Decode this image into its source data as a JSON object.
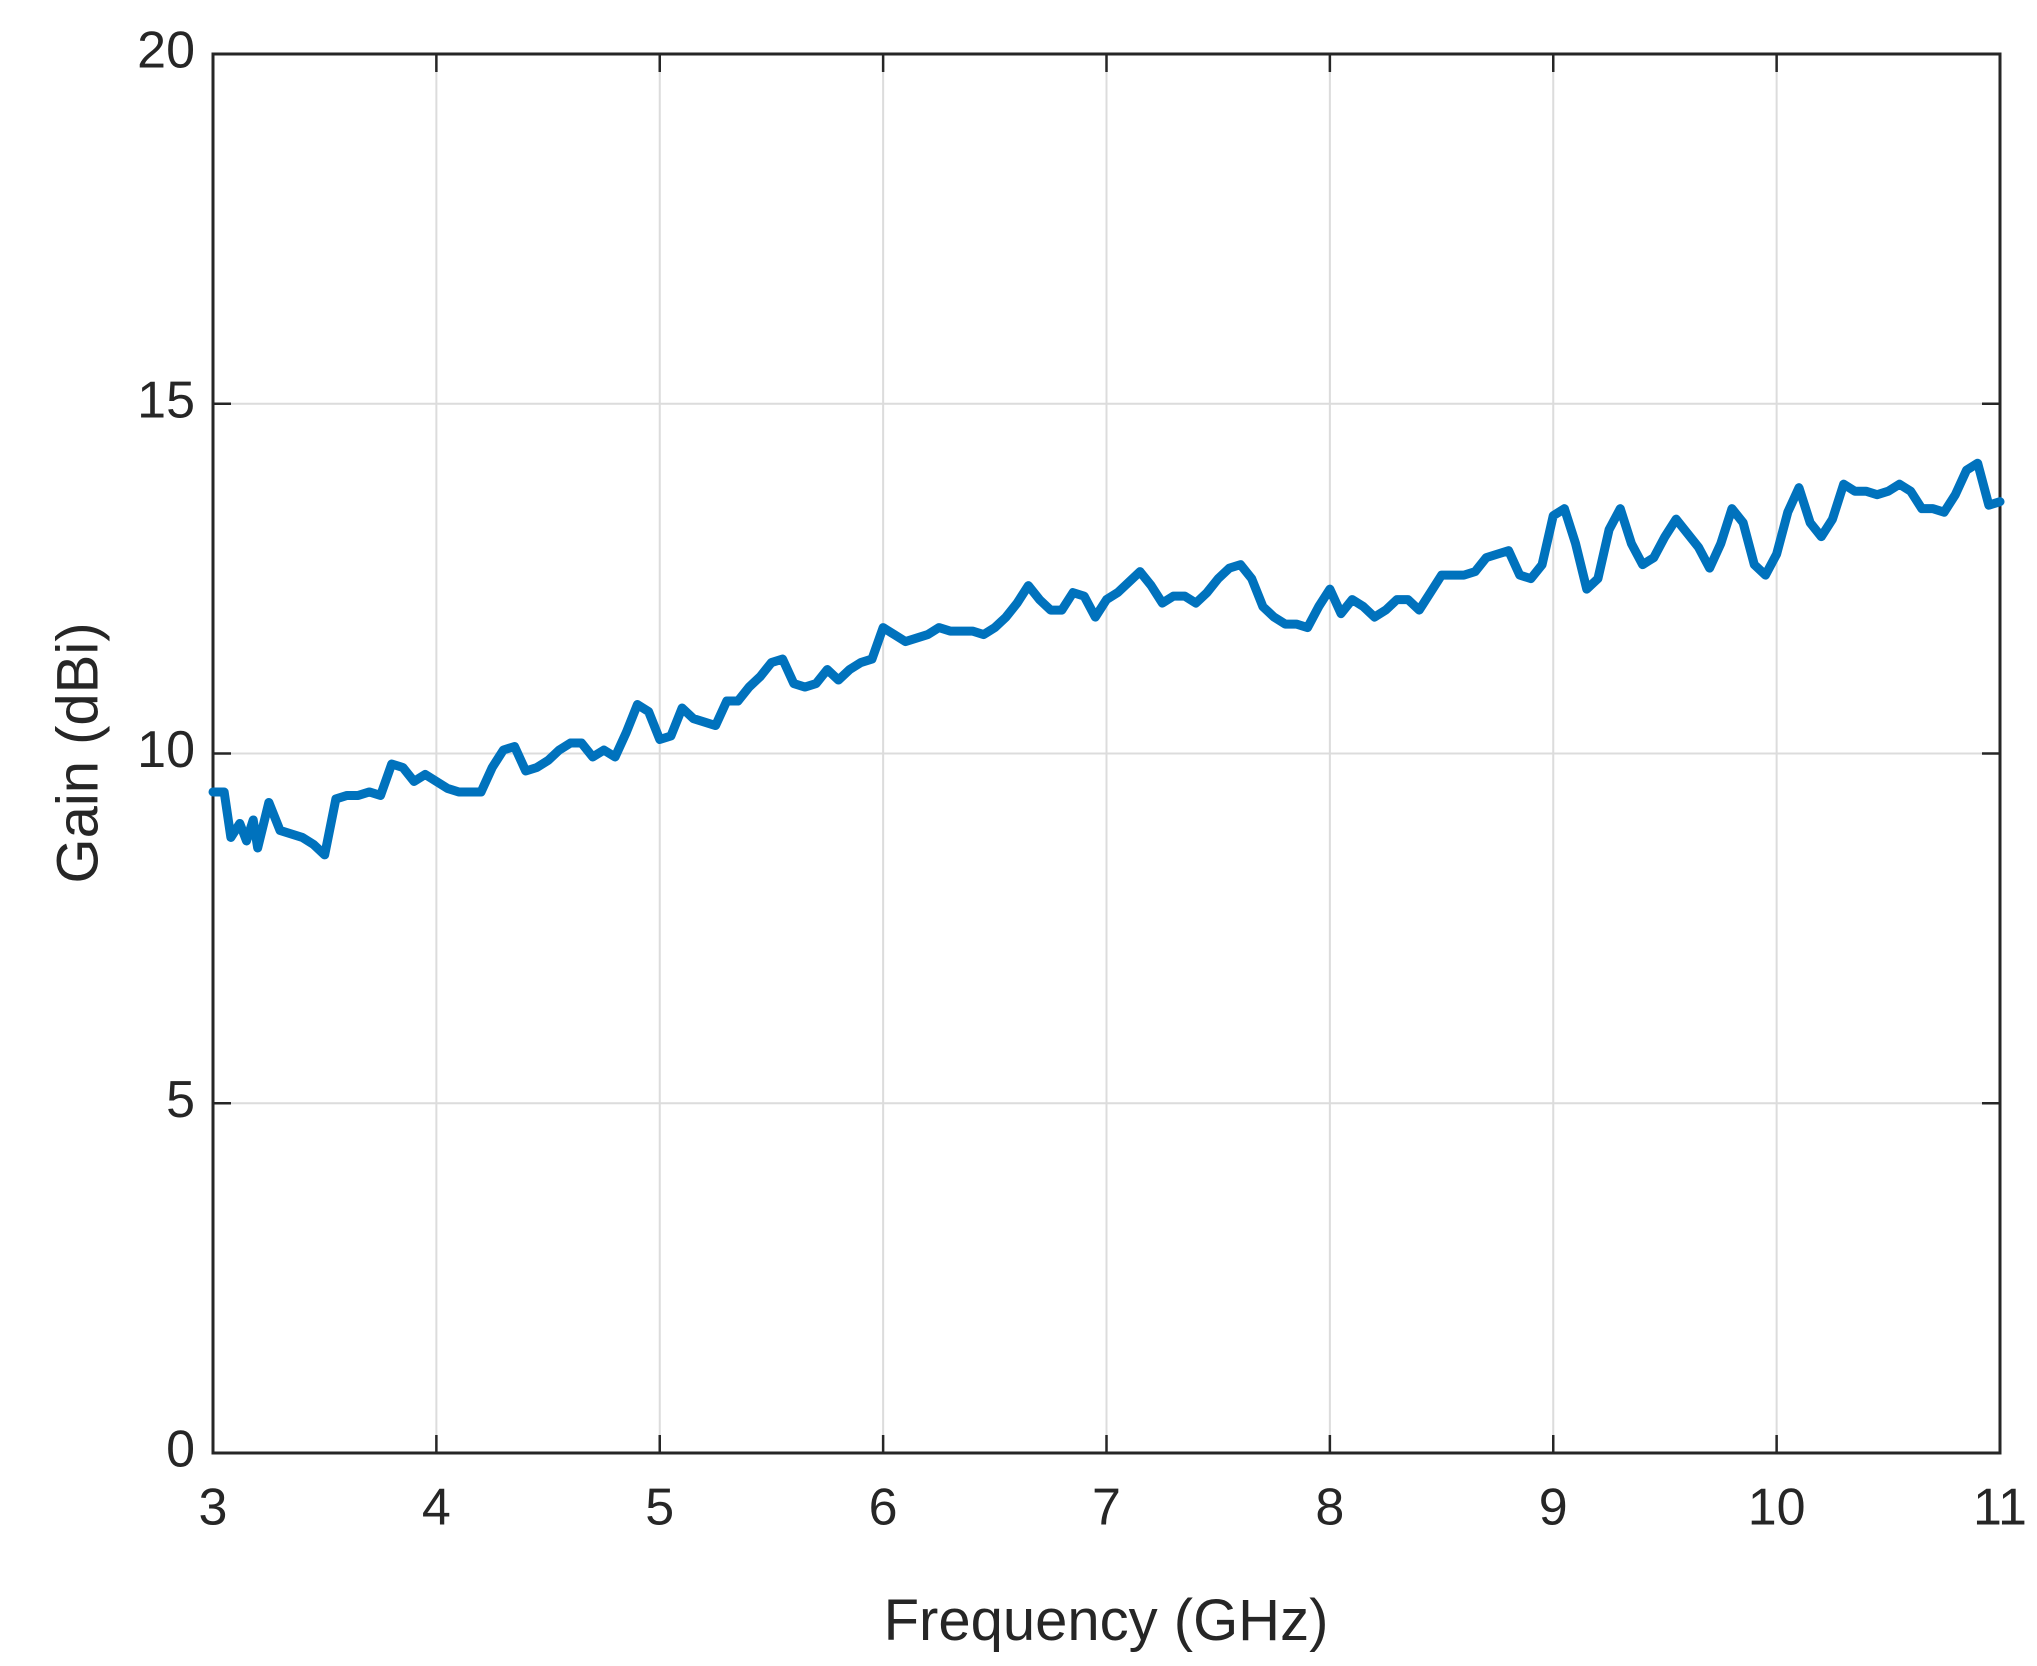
{
  "chart_data": {
    "type": "line",
    "xlabel": "Frequency (GHz)",
    "ylabel": "Gain (dBi)",
    "x": [
      3.0,
      3.05,
      3.08,
      3.12,
      3.15,
      3.18,
      3.2,
      3.25,
      3.3,
      3.35,
      3.4,
      3.45,
      3.5,
      3.55,
      3.6,
      3.65,
      3.7,
      3.75,
      3.8,
      3.85,
      3.9,
      3.95,
      4.0,
      4.05,
      4.1,
      4.2,
      4.25,
      4.3,
      4.35,
      4.4,
      4.45,
      4.5,
      4.55,
      4.6,
      4.65,
      4.7,
      4.75,
      4.8,
      4.85,
      4.9,
      4.95,
      5.0,
      5.05,
      5.1,
      5.15,
      5.2,
      5.25,
      5.3,
      5.35,
      5.4,
      5.45,
      5.5,
      5.55,
      5.6,
      5.65,
      5.7,
      5.75,
      5.8,
      5.85,
      5.9,
      5.95,
      6.0,
      6.05,
      6.1,
      6.15,
      6.2,
      6.25,
      6.3,
      6.4,
      6.45,
      6.5,
      6.55,
      6.6,
      6.65,
      6.7,
      6.75,
      6.8,
      6.85,
      6.9,
      6.95,
      7.0,
      7.05,
      7.1,
      7.15,
      7.2,
      7.25,
      7.3,
      7.35,
      7.4,
      7.45,
      7.5,
      7.55,
      7.6,
      7.65,
      7.7,
      7.75,
      7.8,
      7.85,
      7.9,
      7.95,
      8.0,
      8.05,
      8.1,
      8.15,
      8.2,
      8.25,
      8.3,
      8.35,
      8.4,
      8.45,
      8.5,
      8.55,
      8.6,
      8.65,
      8.7,
      8.75,
      8.8,
      8.85,
      8.9,
      8.95,
      9.0,
      9.05,
      9.1,
      9.15,
      9.2,
      9.25,
      9.3,
      9.35,
      9.4,
      9.45,
      9.5,
      9.55,
      9.6,
      9.65,
      9.7,
      9.75,
      9.8,
      9.85,
      9.9,
      9.95,
      10.0,
      10.05,
      10.1,
      10.15,
      10.2,
      10.25,
      10.3,
      10.35,
      10.4,
      10.45,
      10.5,
      10.55,
      10.6,
      10.65,
      10.7,
      10.75,
      10.8,
      10.85,
      10.9,
      10.95,
      11.0
    ],
    "series": [
      {
        "color": "#0072bd",
        "values": [
          9.45,
          9.45,
          8.8,
          9.0,
          8.75,
          9.05,
          8.65,
          9.3,
          8.9,
          8.85,
          8.8,
          8.7,
          8.55,
          9.35,
          9.4,
          9.4,
          9.45,
          9.4,
          9.85,
          9.8,
          9.6,
          9.7,
          9.6,
          9.5,
          9.45,
          9.45,
          9.8,
          10.05,
          10.1,
          9.75,
          9.8,
          9.9,
          10.05,
          10.15,
          10.15,
          9.95,
          10.05,
          9.95,
          10.3,
          10.7,
          10.6,
          10.2,
          10.25,
          10.65,
          10.5,
          10.45,
          10.4,
          10.75,
          10.75,
          10.95,
          11.1,
          11.3,
          11.35,
          11.0,
          10.95,
          11.0,
          11.2,
          11.05,
          11.2,
          11.3,
          11.35,
          11.8,
          11.7,
          11.6,
          11.65,
          11.7,
          11.8,
          11.75,
          11.75,
          11.7,
          11.8,
          11.95,
          12.15,
          12.4,
          12.2,
          12.05,
          12.05,
          12.3,
          12.25,
          11.95,
          12.2,
          12.3,
          12.45,
          12.6,
          12.4,
          12.15,
          12.25,
          12.25,
          12.15,
          12.3,
          12.5,
          12.65,
          12.7,
          12.5,
          12.1,
          11.95,
          11.85,
          11.85,
          11.8,
          12.1,
          12.35,
          12.0,
          12.2,
          12.1,
          11.95,
          12.05,
          12.2,
          12.2,
          12.05,
          12.3,
          12.55,
          12.55,
          12.55,
          12.6,
          12.8,
          12.85,
          12.9,
          12.55,
          12.5,
          12.7,
          13.4,
          13.5,
          13.0,
          12.35,
          12.5,
          13.2,
          13.5,
          13.0,
          12.7,
          12.8,
          13.1,
          13.35,
          13.15,
          12.95,
          12.65,
          13.0,
          13.5,
          13.3,
          12.7,
          12.55,
          12.85,
          13.45,
          13.8,
          13.3,
          13.1,
          13.35,
          13.85,
          13.75,
          13.75,
          13.7,
          13.75,
          13.85,
          13.75,
          13.5,
          13.5,
          13.45,
          13.7,
          14.05,
          14.15,
          13.55,
          13.6
        ]
      }
    ],
    "xlim": [
      3,
      11
    ],
    "xticks": [
      3,
      4,
      5,
      6,
      7,
      8,
      9,
      10,
      11
    ],
    "ylim": [
      0,
      20
    ],
    "yticks": [
      0,
      5,
      10,
      15,
      20
    ],
    "grid": true
  }
}
